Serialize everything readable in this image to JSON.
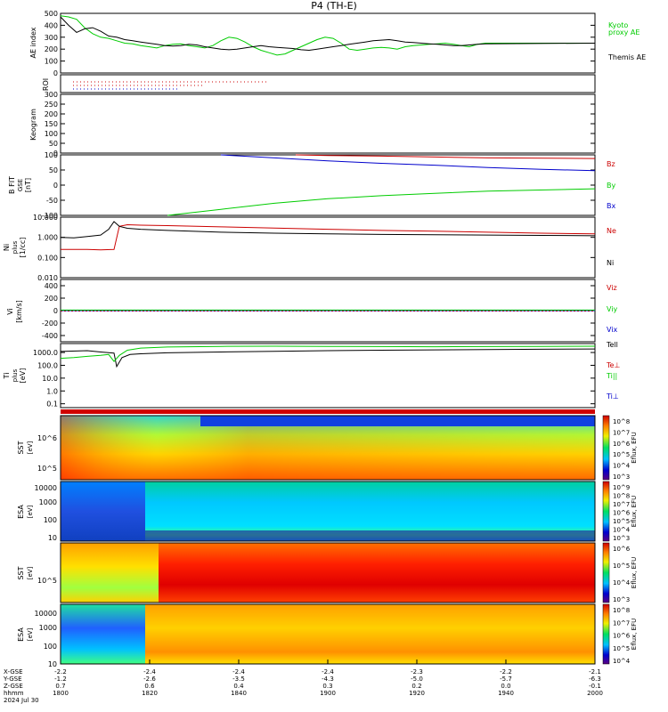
{
  "title": "P4 (TH-E)",
  "date_label": "2024 Jul 30",
  "colors": {
    "green": "#00cc00",
    "red": "#cc0000",
    "blue": "#0000cc",
    "black": "#000000"
  },
  "chart_data": [
    {
      "type": "line",
      "panel": "ae",
      "ylabel": "AE index",
      "ylim": [
        0,
        500
      ],
      "yticks": [
        "0",
        "100",
        "200",
        "300",
        "400",
        "500"
      ],
      "right_labels": [
        {
          "text": "Kyoto",
          "color": "#00cc00"
        },
        {
          "text": "proxy AE",
          "color": "#00cc00"
        },
        {
          "text": "Themis AE",
          "color": "#000000"
        }
      ],
      "x": [
        1800,
        1803,
        1806,
        1809,
        1812,
        1815,
        1818,
        1821,
        1824,
        1827,
        1830,
        1833,
        1836,
        1839,
        1842,
        1845,
        1848,
        1851,
        1854,
        1857,
        1860,
        1863,
        1866,
        1869,
        1872,
        1875,
        1878,
        1881,
        1884,
        1887,
        1890,
        1893,
        1896,
        1899,
        1902,
        1905,
        1908,
        1911,
        1914,
        1917,
        1920,
        1923,
        1926,
        1929,
        1932,
        1935,
        1938,
        1941,
        1944,
        1947,
        1950,
        1953,
        1956,
        1959,
        2000
      ],
      "series": [
        {
          "name": "Kyoto",
          "values": [
            480,
            470,
            450,
            380,
            330,
            300,
            290,
            270,
            250,
            245,
            230,
            220,
            210,
            230,
            240,
            245,
            230,
            220,
            210,
            230,
            270,
            300,
            290,
            260,
            220,
            190,
            170,
            150,
            160,
            190,
            220,
            250,
            280,
            300,
            290,
            250,
            200,
            190,
            200,
            210,
            215,
            210,
            200,
            220,
            230,
            235,
            240,
            245,
            250,
            240,
            230,
            220,
            240,
            250,
            250
          ]
        },
        {
          "name": "Themis AE",
          "values": [
            470,
            400,
            340,
            370,
            380,
            350,
            310,
            300,
            280,
            270,
            260,
            250,
            240,
            230,
            225,
            230,
            240,
            235,
            220,
            210,
            200,
            195,
            200,
            210,
            220,
            230,
            220,
            215,
            210,
            205,
            195,
            190,
            200,
            210,
            220,
            230,
            240,
            250,
            260,
            270,
            275,
            280,
            270,
            260,
            255,
            250,
            245,
            240,
            235,
            230,
            230,
            235,
            240,
            245,
            250
          ]
        }
      ]
    },
    {
      "type": "scatter",
      "panel": "roi",
      "ylabel": "ROI"
    },
    {
      "type": "heatmap",
      "panel": "keogram",
      "ylabel": "Keogram",
      "ylim": [
        0,
        300
      ],
      "yticks": [
        "0",
        "50",
        "100",
        "150",
        "200",
        "250",
        "300"
      ]
    },
    {
      "type": "line",
      "panel": "bfield",
      "ylabel": "B FIT",
      "ylabel2": "GSE",
      "unit": "[nT]",
      "ylim": [
        -100,
        100
      ],
      "yticks": [
        "-100",
        "-50",
        "0",
        "50",
        "100"
      ],
      "right_labels": [
        {
          "text": "Bz",
          "color": "#cc0000"
        },
        {
          "text": "By",
          "color": "#00cc00"
        },
        {
          "text": "Bx",
          "color": "#0000cc"
        }
      ],
      "series": [
        {
          "name": "Bz",
          "x": [
            1888,
            1900,
            1920,
            1940,
            1960,
            2000
          ],
          "values": [
            100,
            98,
            96,
            93,
            90,
            88
          ]
        },
        {
          "name": "By",
          "x": [
            1840,
            1860,
            1880,
            1900,
            1920,
            1940,
            1960,
            2000
          ],
          "values": [
            -100,
            -80,
            -60,
            -45,
            -35,
            -27,
            -20,
            -12
          ]
        },
        {
          "name": "Bx",
          "x": [
            1860,
            1880,
            1900,
            1920,
            1940,
            1960,
            1980,
            2000
          ],
          "values": [
            100,
            90,
            80,
            72,
            66,
            58,
            52,
            48
          ]
        }
      ]
    },
    {
      "type": "line",
      "panel": "density",
      "ylabel": "Ni",
      "ylabel2": "plus",
      "unit": "[1/cc]",
      "yscale": "log",
      "ylim": [
        0.01,
        10
      ],
      "yticks": [
        "10.000",
        "1.000",
        "0.100",
        "0.010"
      ],
      "right_labels": [
        {
          "text": "Ne",
          "color": "#cc0000"
        },
        {
          "text": "Ni",
          "color": "#000000"
        }
      ],
      "series": [
        {
          "name": "Ne",
          "x": [
            1800,
            1810,
            1815,
            1820,
            1822,
            1825,
            1830,
            1840,
            1860,
            1880,
            1900,
            1920,
            1940,
            1960,
            1980,
            2000
          ],
          "values": [
            0.25,
            0.25,
            0.24,
            0.25,
            3.5,
            4.2,
            4.0,
            3.8,
            3.3,
            2.9,
            2.5,
            2.2,
            2.0,
            1.8,
            1.6,
            1.5
          ]
        },
        {
          "name": "Ni",
          "x": [
            1800,
            1805,
            1810,
            1815,
            1818,
            1820,
            1822,
            1825,
            1830,
            1840,
            1860,
            1880,
            1900,
            1920,
            1940,
            1960,
            1980,
            2000
          ],
          "values": [
            1.0,
            0.95,
            1.1,
            1.3,
            2.5,
            6.0,
            3.5,
            2.8,
            2.5,
            2.2,
            1.8,
            1.6,
            1.5,
            1.4,
            1.35,
            1.3,
            1.25,
            1.2
          ]
        }
      ]
    },
    {
      "type": "line",
      "panel": "velocity",
      "ylabel": "Vi",
      "unit": "[km/s]",
      "ylim": [
        -500,
        500
      ],
      "yticks": [
        "-400",
        "-200",
        "0",
        "200",
        "400"
      ],
      "right_labels": [
        {
          "text": "Viz",
          "color": "#cc0000"
        },
        {
          "text": "Viy",
          "color": "#00cc00"
        },
        {
          "text": "Vix",
          "color": "#0000cc"
        }
      ]
    },
    {
      "type": "line",
      "panel": "temperature",
      "ylabel": "Ti",
      "ylabel2": "plus",
      "unit": "[eV]",
      "yscale": "log",
      "ylim": [
        0.05,
        5000
      ],
      "yticks": [
        "1000.0",
        "100.0",
        "10.0",
        "1.0",
        "0.1"
      ],
      "right_labels": [
        {
          "text": "Tell",
          "color": "#000000"
        },
        {
          "text": "Te⊥",
          "color": "#cc0000"
        },
        {
          "text": "Ti||",
          "color": "#00cc00"
        },
        {
          "text": "Ti⊥",
          "color": "#0000cc"
        }
      ],
      "series": [
        {
          "name": "Tell",
          "x": [
            1800,
            1810,
            1815,
            1820,
            1821,
            1823,
            1826,
            1830,
            1840,
            1860,
            1880,
            1900,
            1920,
            1940,
            1960,
            1980,
            2000
          ],
          "values": [
            1200,
            1400,
            1100,
            900,
            80,
            400,
            700,
            800,
            950,
            1100,
            1250,
            1400,
            1500,
            1600,
            1700,
            1800,
            1900
          ]
        },
        {
          "name": "Ti||",
          "x": [
            1800,
            1805,
            1810,
            1815,
            1818,
            1820,
            1822,
            1825,
            1830,
            1840,
            1860,
            1880,
            1900,
            1920,
            1940,
            1960,
            1980,
            2000
          ],
          "values": [
            350,
            400,
            500,
            600,
            700,
            200,
            600,
            1500,
            2200,
            2700,
            3000,
            3100,
            3000,
            2900,
            2800,
            2900,
            3000,
            3100
          ]
        }
      ]
    },
    {
      "type": "heatmap",
      "panel": "sst_e",
      "ylabel": "SST",
      "ylabel2": "[eV]",
      "yticks": [
        "10^6",
        "10^5"
      ]
    },
    {
      "type": "heatmap",
      "panel": "esa_e",
      "ylabel": "ESA",
      "ylabel2": "[eV]",
      "yticks": [
        "10000",
        "1000",
        "100",
        "10"
      ]
    },
    {
      "type": "heatmap",
      "panel": "sst_i",
      "ylabel": "SST",
      "ylabel2": "[eV]",
      "yticks": [
        "10^5"
      ]
    },
    {
      "type": "heatmap",
      "panel": "esa_i",
      "ylabel": "ESA",
      "ylabel2": "[eV]",
      "yticks": [
        "10000",
        "1000",
        "100",
        "10"
      ]
    }
  ],
  "colorbars": [
    {
      "label": "Eflux, EFU",
      "ticks": [
        "10^8",
        "10^7",
        "10^6",
        "10^5",
        "10^4",
        "10^3"
      ]
    },
    {
      "label": "Eflux, EFU",
      "ticks": [
        "10^9",
        "10^8",
        "10^7",
        "10^6",
        "10^5",
        "10^4",
        "10^3"
      ]
    },
    {
      "label": "Eflux, EFU",
      "ticks": [
        "10^6",
        "10^5",
        "10^4",
        "10^3"
      ]
    },
    {
      "label": "Eflux, EFU",
      "ticks": [
        "10^8",
        "10^7",
        "10^6",
        "10^5",
        "10^4"
      ]
    }
  ],
  "time_axis": {
    "row_labels": [
      "X-GSE",
      "Y-GSE",
      "Z-GSE",
      "hhmm",
      "2024 Jul 30"
    ],
    "columns": [
      {
        "x": "-2.2",
        "y": "-1.2",
        "z": "0.7",
        "t": "1800"
      },
      {
        "x": "-2.4",
        "y": "-2.6",
        "z": "0.6",
        "t": "1820"
      },
      {
        "x": "-2.4",
        "y": "-3.5",
        "z": "0.4",
        "t": "1840"
      },
      {
        "x": "-2.4",
        "y": "-4.3",
        "z": "0.3",
        "t": "1900"
      },
      {
        "x": "-2.3",
        "y": "-5.0",
        "z": "0.2",
        "t": "1920"
      },
      {
        "x": "-2.2",
        "y": "-5.7",
        "z": "0.0",
        "t": "1940"
      },
      {
        "x": "-2.1",
        "y": "-6.3",
        "z": "-0.1",
        "t": "2000"
      }
    ]
  }
}
